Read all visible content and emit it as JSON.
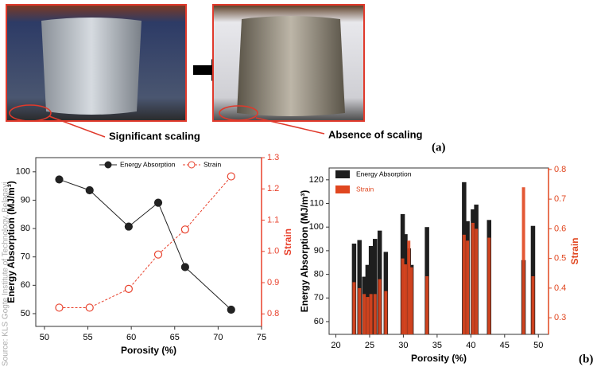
{
  "figure": {
    "source": "Source: KLS Gogte Institute of Technology, Belagavi",
    "label_left": "Significant scaling",
    "label_right": "Absence of scaling",
    "panel_a": "(a)",
    "panel_b": "(b)"
  },
  "chart_data": [
    {
      "type": "line",
      "xlabel": "Porosity (%)",
      "ylabel": "Energy Absorption (MJ/m³)",
      "y2label": "Strain",
      "x": [
        51.7,
        55.2,
        59.7,
        63.1,
        66.2,
        71.5
      ],
      "xlim": [
        49,
        75
      ],
      "xticks": [
        50,
        55,
        60,
        65,
        70,
        75
      ],
      "ylim": [
        45.5,
        105
      ],
      "yticks": [
        50,
        60,
        70,
        80,
        90,
        100
      ],
      "y2lim": [
        0.76,
        1.3
      ],
      "y2ticks": [
        {
          "value": 0.8,
          "label": "0.8"
        },
        {
          "value": 0.9,
          "label": "0.9"
        },
        {
          "value": 1,
          "label": "1.0"
        },
        {
          "value": 1.1,
          "label": "1.1"
        },
        {
          "value": 1.2,
          "label": "1.2"
        },
        {
          "value": 1.3,
          "label": "1.3"
        }
      ],
      "legend": "upper center",
      "series": [
        {
          "name": "Energy Absorption",
          "color": "#222222",
          "values": [
            97.3,
            93.5,
            80.7,
            89.1,
            66.4,
            51.4
          ]
        },
        {
          "name": "Strain",
          "color": "#e8412c",
          "axis": "y2",
          "dashed": true,
          "open_markers": true,
          "values": [
            0.82,
            0.82,
            0.88,
            0.99,
            1.07,
            1.24
          ]
        }
      ]
    },
    {
      "type": "bar",
      "xlabel": "Porosity (%)",
      "ylabel": "Energy Absorption (MJ/m³)",
      "y2label": "Strain",
      "x": [
        22.7,
        23.5,
        24.2,
        24.7,
        25.2,
        25.8,
        26.5,
        27.4,
        29.9,
        30.3,
        30.8,
        31.2,
        33.5,
        39.0,
        39.5,
        40.3,
        40.8,
        42.7,
        47.8,
        49.2
      ],
      "xlim": [
        19,
        51.5
      ],
      "xticks": [
        20,
        25,
        30,
        35,
        40,
        45,
        50
      ],
      "ylim": [
        54.6,
        125
      ],
      "yticks": [
        60,
        70,
        80,
        90,
        100,
        110,
        120
      ],
      "y2lim": [
        0.244,
        0.805
      ],
      "y2ticks": [
        0.3,
        0.4,
        0.5,
        0.6,
        0.7,
        0.8
      ],
      "legend": "upper left",
      "series": [
        {
          "name": "Energy Absorption",
          "color": "#1e1e1e",
          "values": [
            93,
            94.5,
            79,
            84,
            92,
            95,
            98.5,
            89.5,
            105.5,
            97,
            91,
            84,
            100,
            119,
            102.5,
            107.5,
            109.5,
            103,
            86,
            100.5
          ]
        },
        {
          "name": "Strain",
          "color": "#e0461f",
          "axis": "y2",
          "values": [
            0.42,
            0.4,
            0.38,
            0.37,
            0.38,
            0.38,
            0.43,
            0.39,
            0.5,
            0.48,
            0.56,
            0.47,
            0.44,
            0.58,
            0.56,
            0.62,
            0.6,
            0.57,
            0.74,
            0.44
          ]
        }
      ]
    }
  ]
}
